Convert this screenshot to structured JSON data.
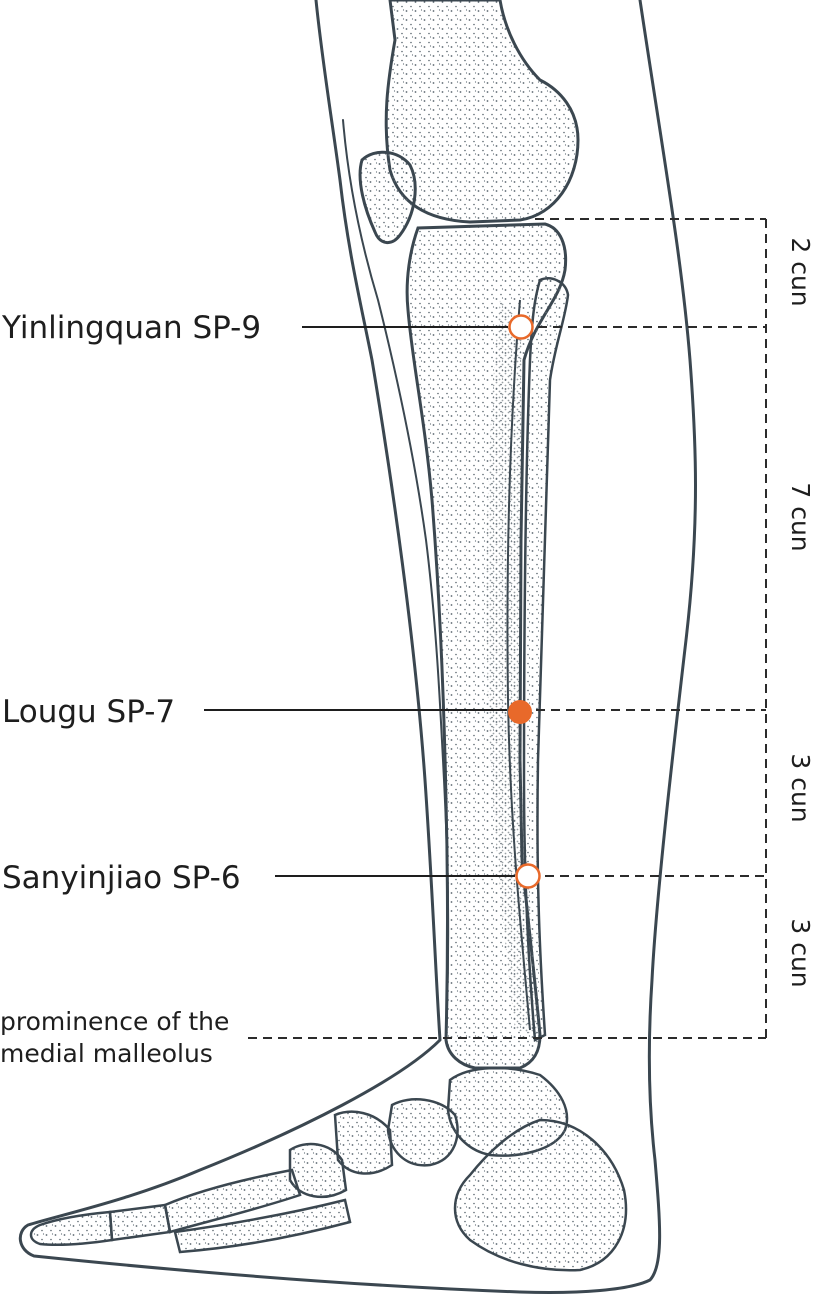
{
  "points": [
    {
      "name": "Yinlingquan SP-9",
      "style": "open"
    },
    {
      "name": "Lougu SP-7",
      "style": "filled"
    },
    {
      "name": "Sanyinjiao SP-6",
      "style": "open"
    }
  ],
  "landmark": {
    "line1": "prominence of the",
    "line2": "medial malleolus"
  },
  "measurements": [
    "2 cun",
    "7 cun",
    "3 cun",
    "3 cun"
  ],
  "colors": {
    "accent": "#e8692a",
    "outline": "#3b4750",
    "stipple": "#5b6770",
    "text": "#1e1e1e"
  }
}
